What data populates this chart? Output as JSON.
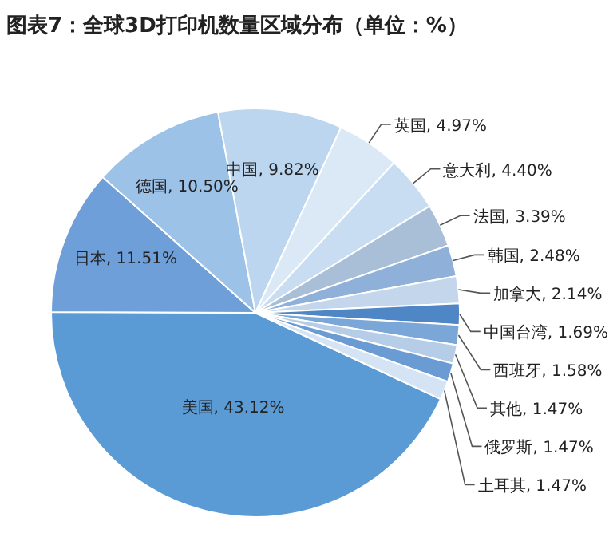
{
  "chart_data": {
    "type": "pie",
    "title": "图表7：全球3D打印机数量区域分布（单位：%）",
    "categories": [
      "美国",
      "日本",
      "德国",
      "中国",
      "英国",
      "意大利",
      "法国",
      "韩国",
      "加拿大",
      "中国台湾",
      "西班牙",
      "其他",
      "俄罗斯",
      "土耳其"
    ],
    "values": [
      43.12,
      11.51,
      10.5,
      9.82,
      4.97,
      4.4,
      3.39,
      2.48,
      2.14,
      1.69,
      1.58,
      1.47,
      1.47,
      1.47
    ],
    "value_labels": [
      "43.12%",
      "11.51%",
      "10.50%",
      "9.82%",
      "4.97%",
      "4.40%",
      "3.39%",
      "2.48%",
      "2.14%",
      "1.69%",
      "1.58%",
      "1.47%",
      "1.47%",
      "1.47%"
    ],
    "colors": [
      "#5b9bd5",
      "#6f9fd8",
      "#9cc2e8",
      "#bcd6f0",
      "#dbe8f6",
      "#c8dcf2",
      "#a9bfd8",
      "#8fb0d8",
      "#c3d6ec",
      "#4f86c6",
      "#7aa6d8",
      "#b6cde8",
      "#6a9bd2",
      "#d5e4f4"
    ],
    "legend": false
  }
}
